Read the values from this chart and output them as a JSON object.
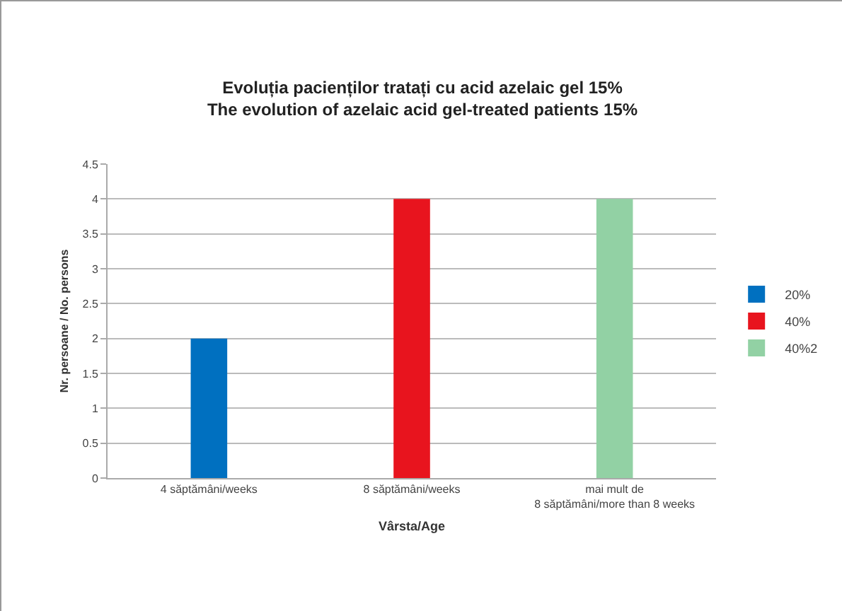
{
  "chart_data": {
    "type": "bar",
    "title": "Evoluția pacienților tratați cu acid azelaic gel 15%",
    "subtitle": "The evolution of azelaic acid gel-treated patients 15%",
    "xlabel": "Vârsta/Age",
    "ylabel": "Nr. persoane / No. persons",
    "categories": [
      "4 săptămâni/weeks",
      "8 săptămâni/weeks",
      "mai mult de\n8 săptămâni/more than 8 weeks"
    ],
    "series": [
      {
        "name": "20%",
        "color": "#0070c0",
        "values": [
          2,
          null,
          null
        ]
      },
      {
        "name": "40%",
        "color": "#e8141e",
        "values": [
          null,
          4,
          null
        ]
      },
      {
        "name": "40%2",
        "color": "#92d1a4",
        "values": [
          null,
          null,
          4
        ]
      }
    ],
    "ylim": [
      0,
      4.5
    ],
    "yticks": [
      0,
      0.5,
      1,
      1.5,
      2,
      2.5,
      3,
      3.5,
      4,
      4.5
    ],
    "grid": "y",
    "legend": "right"
  }
}
